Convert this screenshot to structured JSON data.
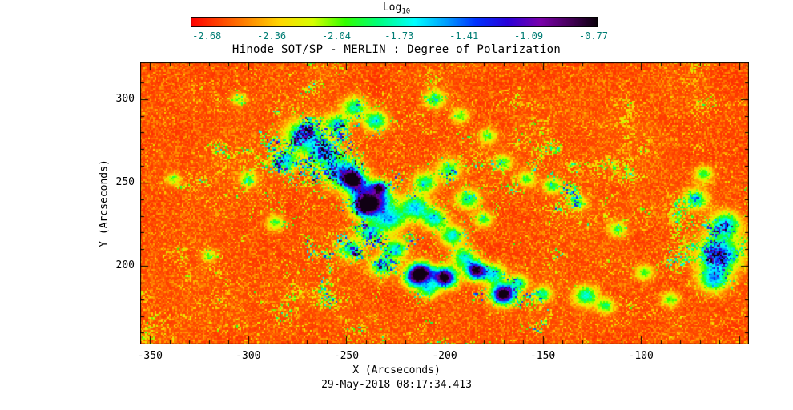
{
  "figure": {
    "background": "#ffffff",
    "text_color": "#000000"
  },
  "chart_data": {
    "type": "heatmap",
    "title": "Hinode SOT/SP - MERLIN : Degree of Polarization",
    "caption": "29-May-2018 08:17:34.413",
    "xlabel": "X (Arcseconds)",
    "ylabel": "Y (Arcseconds)",
    "x_range": [
      -355,
      -45
    ],
    "y_range": [
      153,
      322
    ],
    "x_ticks": [
      -350,
      -300,
      -250,
      -200,
      -150,
      -100
    ],
    "x_tick_labels": [
      "-350",
      "-300",
      "-250",
      "-200",
      "-150",
      "-100"
    ],
    "y_ticks": [
      200,
      250,
      300
    ],
    "y_tick_labels": [
      "200",
      "250",
      "300"
    ],
    "minor_tick_interval": 10,
    "grid": false,
    "colorbar": {
      "label_base": "Log",
      "label_sub": "10",
      "position": "top",
      "range": [
        -2.76,
        -0.75
      ],
      "tick_values": [
        -2.68,
        -2.36,
        -2.04,
        -1.73,
        -1.41,
        -1.09,
        -0.77
      ],
      "tick_labels": [
        "-2.68",
        "-2.36",
        "-2.04",
        "-1.73",
        "-1.41",
        "-1.09",
        "-0.77"
      ],
      "tick_color": "#007d74",
      "gradient_stops": [
        {
          "t": 0.0,
          "c": "#ff0000"
        },
        {
          "t": 0.12,
          "c": "#ff7300"
        },
        {
          "t": 0.22,
          "c": "#ffd800"
        },
        {
          "t": 0.3,
          "c": "#d8ff00"
        },
        {
          "t": 0.38,
          "c": "#33ff00"
        },
        {
          "t": 0.46,
          "c": "#00ff7a"
        },
        {
          "t": 0.55,
          "c": "#00ffff"
        },
        {
          "t": 0.63,
          "c": "#009bff"
        },
        {
          "t": 0.7,
          "c": "#0033ff"
        },
        {
          "t": 0.78,
          "c": "#2a00d8"
        },
        {
          "t": 0.86,
          "c": "#7a00aa"
        },
        {
          "t": 0.93,
          "c": "#47005c"
        },
        {
          "t": 1.0,
          "c": "#0a000a"
        }
      ]
    },
    "palette_note": "rainbow colormap: red = low degree of polarization (~10^-2.7), green/cyan = network, blue/black = strongest (~10^-0.8)",
    "features": {
      "activity_centers": [
        [
          -238,
          238,
          40,
          0.9
        ],
        [
          -205,
          195,
          32,
          0.85
        ],
        [
          -270,
          272,
          25,
          0.7
        ],
        [
          -190,
          168,
          30,
          0.55
        ],
        [
          -62,
          212,
          20,
          0.85
        ],
        [
          -150,
          238,
          22,
          0.5
        ],
        [
          -165,
          190,
          25,
          0.6
        ]
      ],
      "network_patches": [
        [
          -252,
          256,
          6,
          0.55
        ],
        [
          -243,
          247,
          5,
          0.5
        ],
        [
          -233,
          240,
          5,
          0.5
        ],
        [
          -228,
          228,
          5,
          0.5
        ],
        [
          -238,
          220,
          4,
          0.45
        ],
        [
          -248,
          210,
          4,
          0.4
        ],
        [
          -225,
          210,
          4,
          0.45
        ],
        [
          -232,
          200,
          4,
          0.4
        ],
        [
          -272,
          278,
          6,
          0.55
        ],
        [
          -262,
          268,
          5,
          0.5
        ],
        [
          -281,
          263,
          4,
          0.45
        ],
        [
          -255,
          285,
          4,
          0.4
        ],
        [
          -235,
          287,
          4,
          0.45
        ],
        [
          -246,
          295,
          4,
          0.4
        ],
        [
          -215,
          235,
          5,
          0.5
        ],
        [
          -205,
          228,
          4,
          0.45
        ],
        [
          -196,
          218,
          4,
          0.45
        ],
        [
          -210,
          250,
          4,
          0.4
        ],
        [
          -198,
          258,
          4,
          0.35
        ],
        [
          -188,
          240,
          4,
          0.4
        ],
        [
          -180,
          228,
          3,
          0.35
        ],
        [
          -215,
          192,
          4,
          0.5
        ],
        [
          -208,
          185,
          3,
          0.4
        ],
        [
          -190,
          205,
          4,
          0.45
        ],
        [
          -175,
          195,
          4,
          0.45
        ],
        [
          -162,
          190,
          3,
          0.4
        ],
        [
          -150,
          183,
          3,
          0.4
        ],
        [
          -128,
          182,
          4,
          0.45
        ],
        [
          -118,
          176,
          3,
          0.35
        ],
        [
          -60,
          207,
          7,
          0.6
        ],
        [
          -57,
          225,
          5,
          0.5
        ],
        [
          -63,
          192,
          5,
          0.5
        ],
        [
          -72,
          240,
          4,
          0.4
        ],
        [
          -68,
          255,
          3,
          0.35
        ],
        [
          -300,
          252,
          3,
          0.3
        ],
        [
          -286,
          226,
          3,
          0.3
        ],
        [
          -320,
          206,
          2.5,
          0.25
        ],
        [
          -338,
          252,
          2.5,
          0.25
        ],
        [
          -305,
          300,
          2.5,
          0.25
        ],
        [
          -145,
          248,
          3,
          0.35
        ],
        [
          -132,
          238,
          3,
          0.3
        ],
        [
          -98,
          196,
          3,
          0.3
        ],
        [
          -85,
          180,
          3,
          0.3
        ],
        [
          -112,
          222,
          3,
          0.3
        ],
        [
          -170,
          262,
          3,
          0.3
        ],
        [
          -158,
          252,
          3,
          0.3
        ],
        [
          -205,
          300,
          3.5,
          0.35
        ],
        [
          -192,
          290,
          3,
          0.3
        ],
        [
          -178,
          278,
          3,
          0.3
        ]
      ],
      "pores": [
        [
          -240,
          236,
          4.5,
          1.05
        ],
        [
          -212,
          196,
          4,
          0.95
        ],
        [
          -200,
          193,
          4,
          1.0
        ],
        [
          -184,
          197,
          3.5,
          0.9
        ],
        [
          -170,
          183,
          4,
          1.05
        ],
        [
          -247,
          252,
          3,
          0.8
        ],
        [
          -233,
          247,
          2.5,
          0.7
        ]
      ]
    }
  }
}
